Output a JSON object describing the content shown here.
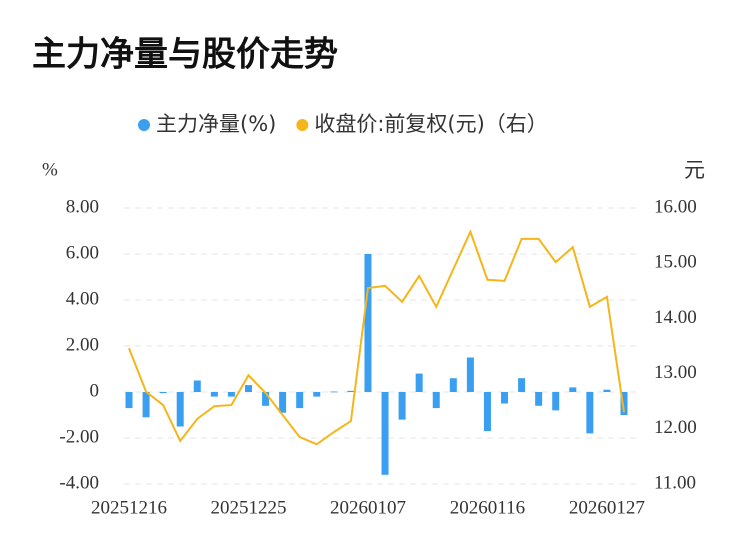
{
  "chart_data": {
    "type": "bar-line",
    "title": "主力净量与股价走势",
    "y_label": "%",
    "y2_label": "元",
    "categories": [
      "20251216",
      null,
      null,
      null,
      null,
      null,
      null,
      "20251225",
      null,
      null,
      null,
      null,
      null,
      null,
      "20260107",
      null,
      null,
      null,
      null,
      null,
      null,
      "20260116",
      null,
      null,
      null,
      null,
      null,
      null,
      "20260127",
      null
    ],
    "series": [
      {
        "name": "主力净量(%)",
        "type": "bar",
        "color": "#3a9ff0",
        "values": [
          -0.7,
          -1.1,
          -0.05,
          -1.5,
          0.5,
          -0.2,
          -0.2,
          0.3,
          -0.6,
          -0.9,
          -0.7,
          -0.2,
          0.02,
          0.05,
          6.0,
          -3.6,
          -1.2,
          0.8,
          -0.7,
          0.6,
          1.5,
          -1.7,
          -0.5,
          0.6,
          -0.6,
          -0.8,
          0.2,
          -1.8,
          0.1,
          -1.0
        ]
      },
      {
        "name": "收盘价:前复权(元)（右）",
        "type": "line",
        "axis": "y2",
        "color": "#f5b51b",
        "values": [
          13.46,
          12.67,
          12.43,
          11.78,
          12.18,
          12.41,
          12.43,
          12.97,
          12.65,
          12.25,
          11.85,
          11.72,
          11.94,
          12.14,
          14.55,
          14.59,
          14.3,
          14.77,
          14.21,
          14.89,
          15.57,
          14.7,
          14.68,
          15.44,
          15.44,
          15.02,
          15.29,
          14.21,
          14.39,
          12.3
        ]
      }
    ],
    "ylim": [
      -4,
      8
    ],
    "yticks": [
      {
        "value": -4,
        "label": "-4.00"
      },
      {
        "value": -2,
        "label": "-2.00"
      },
      0,
      {
        "value": 2,
        "label": "2.00"
      },
      {
        "value": 4,
        "label": "4.00"
      },
      {
        "value": 6,
        "label": "6.00"
      },
      {
        "value": 8,
        "label": "8.00"
      }
    ],
    "y2lim": [
      11,
      16
    ],
    "y2ticks": [
      {
        "value": 11,
        "label": "11.00"
      },
      {
        "value": 12,
        "label": "12.00"
      },
      {
        "value": 13,
        "label": "13.00"
      },
      {
        "value": 14,
        "label": "14.00"
      },
      {
        "value": 15,
        "label": "15.00"
      },
      {
        "value": 16,
        "label": "16.00"
      }
    ],
    "grid": true
  }
}
